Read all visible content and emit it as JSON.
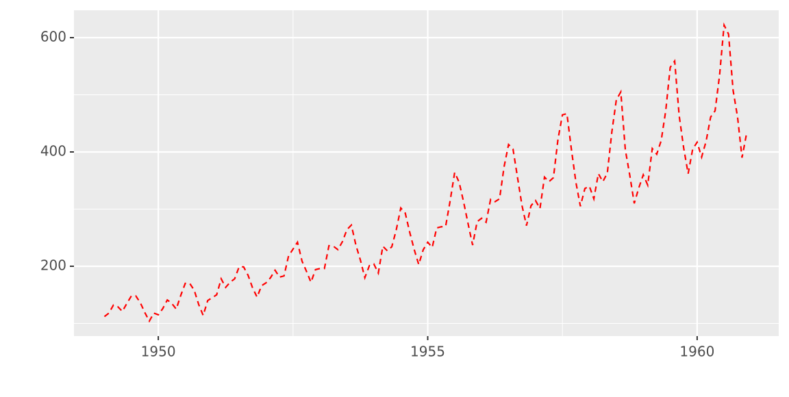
{
  "chart_data": {
    "type": "line",
    "x": [
      1949,
      1949.083,
      1949.167,
      1949.25,
      1949.333,
      1949.417,
      1949.5,
      1949.583,
      1949.667,
      1949.75,
      1949.833,
      1949.917,
      1950,
      1950.083,
      1950.167,
      1950.25,
      1950.333,
      1950.417,
      1950.5,
      1950.583,
      1950.667,
      1950.75,
      1950.833,
      1950.917,
      1951,
      1951.083,
      1951.167,
      1951.25,
      1951.333,
      1951.417,
      1951.5,
      1951.583,
      1951.667,
      1951.75,
      1951.833,
      1951.917,
      1952,
      1952.083,
      1952.167,
      1952.25,
      1952.333,
      1952.417,
      1952.5,
      1952.583,
      1952.667,
      1952.75,
      1952.833,
      1952.917,
      1953,
      1953.083,
      1953.167,
      1953.25,
      1953.333,
      1953.417,
      1953.5,
      1953.583,
      1953.667,
      1953.75,
      1953.833,
      1953.917,
      1954,
      1954.083,
      1954.167,
      1954.25,
      1954.333,
      1954.417,
      1954.5,
      1954.583,
      1954.667,
      1954.75,
      1954.833,
      1954.917,
      1955,
      1955.083,
      1955.167,
      1955.25,
      1955.333,
      1955.417,
      1955.5,
      1955.583,
      1955.667,
      1955.75,
      1955.833,
      1955.917,
      1956,
      1956.083,
      1956.167,
      1956.25,
      1956.333,
      1956.417,
      1956.5,
      1956.583,
      1956.667,
      1956.75,
      1956.833,
      1956.917,
      1957,
      1957.083,
      1957.167,
      1957.25,
      1957.333,
      1957.417,
      1957.5,
      1957.583,
      1957.667,
      1957.75,
      1957.833,
      1957.917,
      1958,
      1958.083,
      1958.167,
      1958.25,
      1958.333,
      1958.417,
      1958.5,
      1958.583,
      1958.667,
      1958.75,
      1958.833,
      1958.917,
      1959,
      1959.083,
      1959.167,
      1959.25,
      1959.333,
      1959.417,
      1959.5,
      1959.583,
      1959.667,
      1959.75,
      1959.833,
      1959.917,
      1960,
      1960.083,
      1960.167,
      1960.25,
      1960.333,
      1960.417,
      1960.5,
      1960.583,
      1960.667,
      1960.75,
      1960.833,
      1960.917
    ],
    "values": [
      112,
      118,
      132,
      129,
      121,
      135,
      148,
      148,
      136,
      119,
      104,
      118,
      115,
      126,
      141,
      135,
      125,
      149,
      170,
      170,
      158,
      133,
      114,
      140,
      145,
      150,
      178,
      163,
      172,
      178,
      199,
      199,
      184,
      162,
      146,
      166,
      171,
      180,
      193,
      181,
      183,
      218,
      230,
      242,
      209,
      191,
      172,
      194,
      196,
      196,
      236,
      235,
      229,
      243,
      264,
      272,
      237,
      211,
      180,
      201,
      204,
      188,
      235,
      227,
      234,
      264,
      302,
      293,
      259,
      229,
      203,
      229,
      242,
      233,
      267,
      269,
      270,
      315,
      364,
      347,
      312,
      274,
      237,
      278,
      284,
      277,
      317,
      313,
      318,
      374,
      413,
      405,
      355,
      306,
      271,
      306,
      315,
      301,
      356,
      348,
      355,
      422,
      465,
      467,
      404,
      347,
      305,
      336,
      340,
      318,
      362,
      348,
      363,
      435,
      491,
      505,
      404,
      359,
      310,
      337,
      360,
      342,
      406,
      396,
      420,
      472,
      548,
      559,
      463,
      407,
      362,
      405,
      417,
      391,
      419,
      461,
      472,
      535,
      622,
      606,
      508,
      461,
      390,
      432
    ],
    "color": "#ff0000",
    "xlim": [
      1948.435,
      1961.514
    ],
    "xticks": [
      1950,
      1955,
      1960
    ],
    "x_minor_grid": [
      1952.5,
      1957.5
    ],
    "ylim": [
      77.8,
      647.9
    ],
    "yticks": [
      200,
      400,
      600
    ],
    "y_minor_grid": [
      100,
      300,
      500
    ],
    "grid": true
  }
}
